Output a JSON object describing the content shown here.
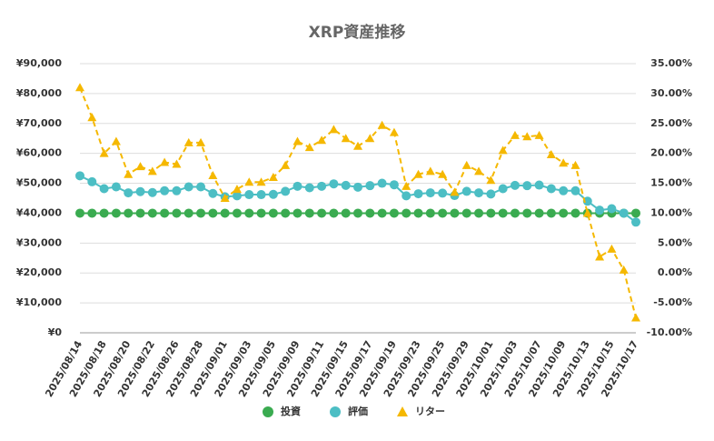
{
  "chart_data": {
    "type": "line",
    "title": "XRP資産推移",
    "categories": [
      "2025/08/14",
      null,
      "2025/08/18",
      null,
      "2025/08/20",
      null,
      "2025/08/22",
      null,
      "2025/08/26",
      null,
      "2025/08/28",
      null,
      "2025/09/01",
      null,
      "2025/09/03",
      null,
      "2025/09/05",
      null,
      "2025/09/09",
      null,
      "2025/09/11",
      null,
      "2025/09/15",
      null,
      "2025/09/17",
      null,
      "2025/09/19",
      null,
      "2025/09/23",
      null,
      "2025/09/25",
      null,
      "2025/09/29",
      null,
      "2025/10/01",
      null,
      "2025/10/03",
      null,
      "2025/10/07",
      null,
      "2025/10/09",
      null,
      "2025/10/13",
      null,
      "2025/10/15",
      null,
      "2025/10/17"
    ],
    "series": [
      {
        "name": "投資",
        "color": "#3aab50",
        "marker": "circle",
        "dashed": false,
        "values": [
          40000,
          40000,
          40000,
          40000,
          40000,
          40000,
          40000,
          40000,
          40000,
          40000,
          40000,
          40000,
          40000,
          40000,
          40000,
          40000,
          40000,
          40000,
          40000,
          40000,
          40000,
          40000,
          40000,
          40000,
          40000,
          40000,
          40000,
          40000,
          40000,
          40000,
          40000,
          40000,
          40000,
          40000,
          40000,
          40000,
          40000,
          40000,
          40000,
          40000,
          40000,
          40000,
          40000,
          40000,
          40000,
          40000,
          40000
        ]
      },
      {
        "name": "評価",
        "color": "#4cbec4",
        "marker": "circle",
        "dashed": false,
        "values": [
          52500,
          50500,
          48200,
          48800,
          46800,
          47200,
          46900,
          47500,
          47500,
          48800,
          48800,
          46600,
          45500,
          45800,
          46200,
          46200,
          46300,
          47300,
          49000,
          48500,
          49000,
          49800,
          49300,
          48700,
          49200,
          50000,
          49500,
          45800,
          46500,
          46800,
          46700,
          45900,
          47300,
          46800,
          46400,
          48200,
          49300,
          49200,
          49400,
          48200,
          47500,
          47500,
          44000,
          41000,
          41500,
          40000,
          37000
        ]
      },
      {
        "name": "リター",
        "color": "#f5b800",
        "marker": "triangle",
        "dashed": true,
        "axis": "y2",
        "values": [
          31,
          26,
          20,
          22,
          16.5,
          17.8,
          17,
          18.5,
          18.2,
          21.8,
          21.8,
          16.3,
          12.5,
          14,
          15.2,
          15.2,
          16,
          18,
          22,
          21,
          22.2,
          24,
          22.5,
          21.2,
          22.5,
          24.7,
          23.5,
          14.5,
          16.5,
          17,
          16.5,
          13.5,
          18,
          17,
          15.5,
          20.5,
          23,
          22.8,
          23,
          19.8,
          18.4,
          18,
          10,
          2.7,
          4,
          0.5,
          -7.5
        ]
      }
    ],
    "ylim": [
      0,
      90000
    ],
    "yticks": [
      {
        "value": 0,
        "label": "¥0"
      },
      {
        "value": 10000,
        "label": "¥10,000"
      },
      {
        "value": 20000,
        "label": "¥20,000"
      },
      {
        "value": 30000,
        "label": "¥30,000"
      },
      {
        "value": 40000,
        "label": "¥40,000"
      },
      {
        "value": 50000,
        "label": "¥50,000"
      },
      {
        "value": 60000,
        "label": "¥60,000"
      },
      {
        "value": 70000,
        "label": "¥70,000"
      },
      {
        "value": 80000,
        "label": "¥80,000"
      },
      {
        "value": 90000,
        "label": "¥90,000"
      }
    ],
    "y2lim": [
      -10,
      35
    ],
    "y2ticks": [
      {
        "value": -10,
        "label": "-10.00%"
      },
      {
        "value": -5,
        "label": "-5.00%"
      },
      {
        "value": 0,
        "label": "0.00%"
      },
      {
        "value": 5,
        "label": "5.00%"
      },
      {
        "value": 10,
        "label": "10.00%"
      },
      {
        "value": 15,
        "label": "15.00%"
      },
      {
        "value": 20,
        "label": "20.00%"
      },
      {
        "value": 25,
        "label": "25.00%"
      },
      {
        "value": 30,
        "label": "30.00%"
      },
      {
        "value": 35,
        "label": "35.00%"
      }
    ],
    "grid": true,
    "legend": "bottom"
  }
}
